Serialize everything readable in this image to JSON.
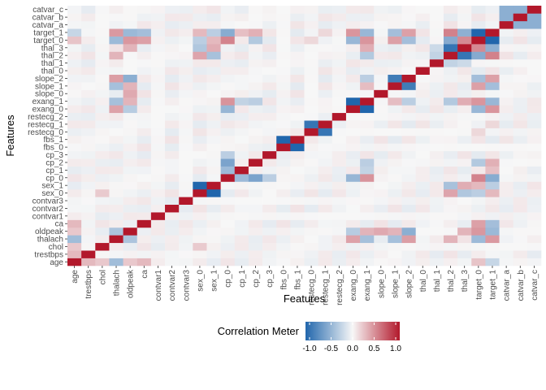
{
  "chart_data": {
    "type": "heatmap",
    "xlabel": "Features",
    "ylabel": "Features",
    "features": [
      "age",
      "trestbps",
      "chol",
      "thalach",
      "oldpeak",
      "ca",
      "contvar1",
      "contvar2",
      "contvar3",
      "sex_0",
      "sex_1",
      "cp_0",
      "cp_1",
      "cp_2",
      "cp_3",
      "fbs_0",
      "fbs_1",
      "restecg_0",
      "restecg_1",
      "restecg_2",
      "exang_0",
      "exang_1",
      "slope_0",
      "slope_1",
      "slope_2",
      "thal_0",
      "thal_1",
      "thal_2",
      "thal_3",
      "target_0",
      "target_1",
      "catvar_a",
      "catvar_b",
      "catvar_c"
    ],
    "legend": {
      "title": "Correlation Meter",
      "ticks": [
        "-1.0",
        "-0.5",
        "0.0",
        "0.5",
        "1.0"
      ],
      "tick_values": [
        -1.0,
        -0.5,
        0.0,
        0.5,
        1.0
      ],
      "range": [
        -1,
        1
      ],
      "colors": {
        "low": "#2166ac",
        "mid": "#f7f7f7",
        "high": "#b2182b"
      }
    },
    "strong_pairs": [
      {
        "a": "sex_0",
        "b": "sex_1",
        "value": -1.0
      },
      {
        "a": "fbs_0",
        "b": "fbs_1",
        "value": -1.0
      },
      {
        "a": "restecg_0",
        "b": "restecg_1",
        "value": -0.9
      },
      {
        "a": "exang_0",
        "b": "exang_1",
        "value": -1.0
      },
      {
        "a": "target_0",
        "b": "target_1",
        "value": -1.0
      },
      {
        "a": "slope_1",
        "b": "slope_2",
        "value": -0.85
      },
      {
        "a": "thal_2",
        "b": "thal_3",
        "value": -0.9
      },
      {
        "a": "catvar_a",
        "b": "catvar_b",
        "value": -0.5
      },
      {
        "a": "catvar_a",
        "b": "catvar_c",
        "value": -0.5
      },
      {
        "a": "catvar_b",
        "b": "catvar_c",
        "value": -0.5
      },
      {
        "a": "thalach",
        "b": "oldpeak",
        "value": -0.35
      },
      {
        "a": "thalach",
        "b": "exang_1",
        "value": -0.38
      },
      {
        "a": "thalach",
        "b": "exang_0",
        "value": 0.38
      },
      {
        "a": "thalach",
        "b": "target_1",
        "value": 0.42
      },
      {
        "a": "thalach",
        "b": "target_0",
        "value": -0.42
      },
      {
        "a": "thalach",
        "b": "slope_2",
        "value": 0.4
      },
      {
        "a": "thalach",
        "b": "slope_1",
        "value": -0.38
      },
      {
        "a": "thalach",
        "b": "age",
        "value": -0.4
      },
      {
        "a": "oldpeak",
        "b": "slope_0",
        "value": 0.35
      },
      {
        "a": "oldpeak",
        "b": "slope_1",
        "value": 0.3
      },
      {
        "a": "oldpeak",
        "b": "slope_2",
        "value": -0.5
      },
      {
        "a": "oldpeak",
        "b": "exang_1",
        "value": 0.3
      },
      {
        "a": "oldpeak",
        "b": "exang_0",
        "value": -0.3
      },
      {
        "a": "oldpeak",
        "b": "target_0",
        "value": 0.43
      },
      {
        "a": "oldpeak",
        "b": "target_1",
        "value": -0.43
      },
      {
        "a": "ca",
        "b": "target_0",
        "value": 0.39
      },
      {
        "a": "ca",
        "b": "target_1",
        "value": -0.39
      },
      {
        "a": "ca",
        "b": "age",
        "value": 0.28
      },
      {
        "a": "cp_0",
        "b": "cp_2",
        "value": -0.58
      },
      {
        "a": "cp_0",
        "b": "cp_1",
        "value": -0.42
      },
      {
        "a": "cp_0",
        "b": "cp_3",
        "value": -0.28
      },
      {
        "a": "cp_0",
        "b": "exang_1",
        "value": 0.45
      },
      {
        "a": "cp_0",
        "b": "exang_0",
        "value": -0.45
      },
      {
        "a": "cp_0",
        "b": "target_0",
        "value": 0.52
      },
      {
        "a": "cp_0",
        "b": "target_1",
        "value": -0.52
      },
      {
        "a": "cp_1",
        "b": "target_1",
        "value": 0.25
      },
      {
        "a": "cp_2",
        "b": "target_1",
        "value": 0.32
      },
      {
        "a": "cp_2",
        "b": "target_0",
        "value": -0.32
      },
      {
        "a": "cp_1",
        "b": "exang_1",
        "value": -0.25
      },
      {
        "a": "cp_2",
        "b": "exang_1",
        "value": -0.28
      },
      {
        "a": "exang_1",
        "b": "target_0",
        "value": 0.44
      },
      {
        "a": "exang_0",
        "b": "target_1",
        "value": 0.44
      },
      {
        "a": "exang_1",
        "b": "target_1",
        "value": -0.44
      },
      {
        "a": "exang_0",
        "b": "target_0",
        "value": -0.44
      },
      {
        "a": "slope_1",
        "b": "target_0",
        "value": 0.39
      },
      {
        "a": "slope_2",
        "b": "target_1",
        "value": 0.39
      },
      {
        "a": "slope_1",
        "b": "target_1",
        "value": -0.39
      },
      {
        "a": "slope_2",
        "b": "target_0",
        "value": -0.39
      },
      {
        "a": "thal_2",
        "b": "target_1",
        "value": 0.53
      },
      {
        "a": "thal_3",
        "b": "target_0",
        "value": 0.49
      },
      {
        "a": "thal_2",
        "b": "target_0",
        "value": -0.53
      },
      {
        "a": "thal_3",
        "b": "target_1",
        "value": -0.49
      },
      {
        "a": "thal_1",
        "b": "thal_2",
        "value": -0.25
      },
      {
        "a": "thal_1",
        "b": "thal_3",
        "value": -0.2
      },
      {
        "a": "sex_1",
        "b": "thal_2",
        "value": -0.37
      },
      {
        "a": "sex_1",
        "b": "thal_3",
        "value": 0.33
      },
      {
        "a": "sex_0",
        "b": "thal_2",
        "value": 0.37
      },
      {
        "a": "sex_0",
        "b": "thal_3",
        "value": -0.33
      },
      {
        "a": "sex_1",
        "b": "target_0",
        "value": 0.28
      },
      {
        "a": "sex_0",
        "b": "target_1",
        "value": 0.28
      },
      {
        "a": "sex_1",
        "b": "target_1",
        "value": -0.28
      },
      {
        "a": "sex_0",
        "b": "target_0",
        "value": -0.28
      },
      {
        "a": "sex_0",
        "b": "chol",
        "value": 0.2
      },
      {
        "a": "restecg_0",
        "b": "target_0",
        "value": 0.14
      },
      {
        "a": "restecg_1",
        "b": "target_1",
        "value": 0.14
      },
      {
        "a": "age",
        "b": "trestbps",
        "value": 0.28
      },
      {
        "a": "age",
        "b": "chol",
        "value": 0.21
      },
      {
        "a": "age",
        "b": "oldpeak",
        "value": 0.21
      },
      {
        "a": "age",
        "b": "target_0",
        "value": 0.23
      },
      {
        "a": "age",
        "b": "target_1",
        "value": -0.23
      },
      {
        "a": "slope_2",
        "b": "exang_1",
        "value": -0.28
      },
      {
        "a": "slope_1",
        "b": "exang_1",
        "value": 0.26
      },
      {
        "a": "thal_3",
        "b": "exang_1",
        "value": 0.33
      },
      {
        "a": "thal_2",
        "b": "exang_1",
        "value": -0.32
      },
      {
        "a": "thal_2",
        "b": "thalach",
        "value": 0.3
      },
      {
        "a": "thal_3",
        "b": "oldpeak",
        "value": 0.3
      }
    ]
  }
}
